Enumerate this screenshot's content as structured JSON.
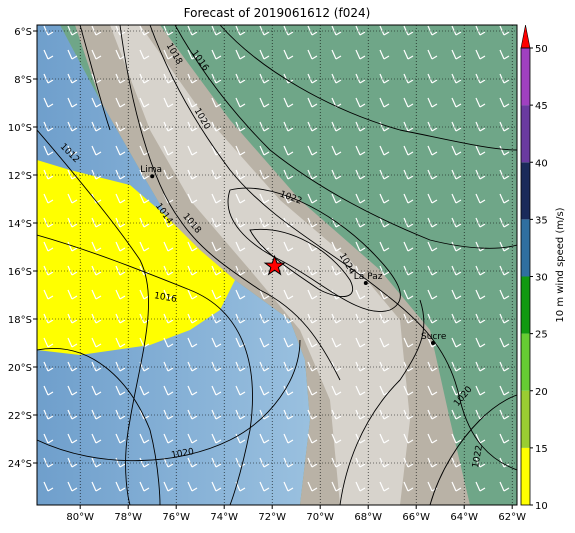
{
  "title": "Forecast of 2019061612 (f024)",
  "map": {
    "lonlim": [
      -81.8,
      -61.8
    ],
    "latlim": [
      -25.75,
      -5.75
    ],
    "lonticks": [
      {
        "value": -80,
        "label": "80°W"
      },
      {
        "value": -78,
        "label": "78°W"
      },
      {
        "value": -76,
        "label": "76°W"
      },
      {
        "value": -74,
        "label": "74°W"
      },
      {
        "value": -72,
        "label": "72°W"
      },
      {
        "value": -70,
        "label": "70°W"
      },
      {
        "value": -68,
        "label": "68°W"
      },
      {
        "value": -66,
        "label": "66°W"
      },
      {
        "value": -64,
        "label": "64°W"
      },
      {
        "value": -62,
        "label": "62°W"
      }
    ],
    "latticks": [
      {
        "value": -6,
        "label": "6°S"
      },
      {
        "value": -8,
        "label": "8°S"
      },
      {
        "value": -10,
        "label": "10°S"
      },
      {
        "value": -12,
        "label": "12°S"
      },
      {
        "value": -14,
        "label": "14°S"
      },
      {
        "value": -16,
        "label": "16°S"
      },
      {
        "value": -18,
        "label": "18°S"
      },
      {
        "value": -20,
        "label": "20°S"
      },
      {
        "value": -22,
        "label": "22°S"
      },
      {
        "value": -24,
        "label": "24°S"
      }
    ],
    "cities": [
      {
        "name": "Lima",
        "lon": -77.0,
        "lat": -12.05
      },
      {
        "name": "La Paz",
        "lon": -68.1,
        "lat": -16.5
      },
      {
        "name": "Sucre",
        "lon": -65.3,
        "lat": -19.0
      }
    ],
    "marker": {
      "lon": -71.9,
      "lat": -15.8
    },
    "contour_labels": [
      1018,
      1016,
      1020,
      1012,
      1014,
      1018,
      1022,
      1016,
      1024,
      1020,
      1020,
      1022
    ]
  },
  "colorbar": {
    "label": "10 m wind speed (m/s)",
    "lim": [
      10,
      50
    ],
    "ticks": [
      10,
      15,
      20,
      25,
      30,
      35,
      40,
      45,
      50
    ],
    "colors": [
      "#ffff00",
      "#9acd32",
      "#66cc33",
      "#119911",
      "#2f6fa0",
      "#1a2a5a",
      "#6a3aa0",
      "#a040c0"
    ],
    "extend_color": "#ff0000"
  }
}
